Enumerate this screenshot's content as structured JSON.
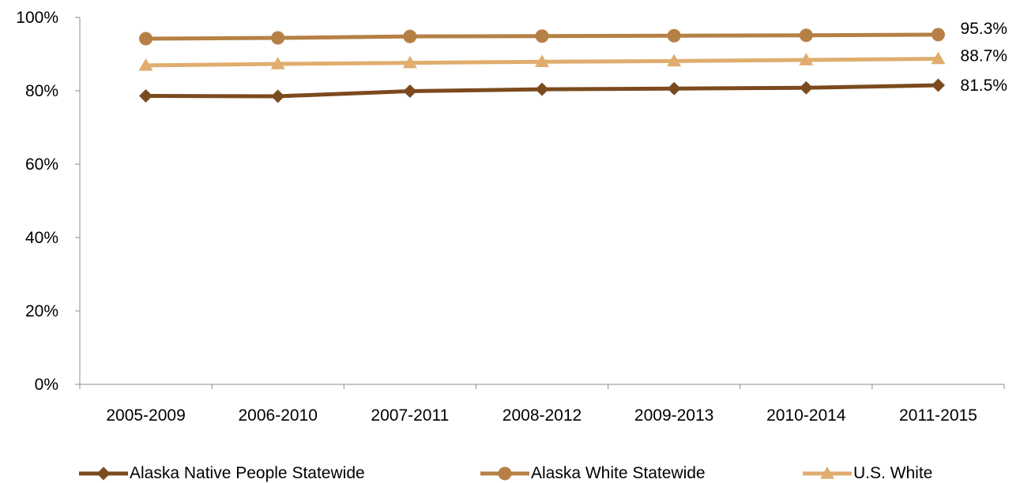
{
  "chart_data": {
    "type": "line",
    "title": "",
    "xlabel": "",
    "ylabel": "",
    "categories": [
      "2005-2009",
      "2006-2010",
      "2007-2011",
      "2008-2012",
      "2009-2013",
      "2010-2014",
      "2011-2015"
    ],
    "ylim": [
      0,
      100
    ],
    "yticks": [
      "0%",
      "20%",
      "40%",
      "60%",
      "80%",
      "100%"
    ],
    "grid": false,
    "legend_position": "bottom",
    "series": [
      {
        "name": "Alaska Native People Statewide",
        "marker": "diamond",
        "color": "#7b4a1e",
        "values": [
          78.6,
          78.5,
          79.9,
          80.4,
          80.6,
          80.8,
          81.5
        ],
        "end_label": "81.5%"
      },
      {
        "name": "Alaska White Statewide",
        "marker": "circle",
        "color": "#b68045",
        "values": [
          94.2,
          94.4,
          94.8,
          94.9,
          95.0,
          95.1,
          95.3
        ],
        "end_label": "95.3%"
      },
      {
        "name": "U.S. White",
        "marker": "triangle",
        "color": "#e0ad6e",
        "values": [
          86.9,
          87.3,
          87.6,
          87.9,
          88.1,
          88.4,
          88.7
        ],
        "end_label": "88.7%"
      }
    ]
  }
}
